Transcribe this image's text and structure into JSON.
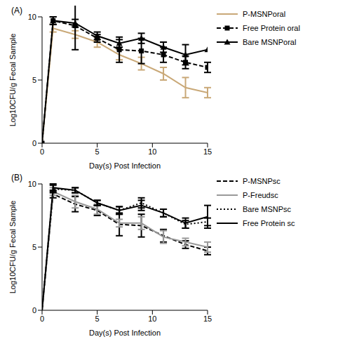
{
  "chart_data": [
    {
      "type": "line",
      "title": "(A)",
      "x_label": "Day(s) Post Infection",
      "y_label": "Log10CFU/g Fecal Sample",
      "x": [
        0,
        1,
        3,
        5,
        7,
        9,
        11,
        13,
        15
      ],
      "xlim": [
        0,
        15
      ],
      "xticks": [
        0,
        5,
        10,
        15
      ],
      "ylim": [
        0,
        10
      ],
      "yticks": [
        0,
        5,
        10
      ],
      "grid": false,
      "legend": "right",
      "series": [
        {
          "name": "P-MSNPoral",
          "color": "#c9a877",
          "line_style": "solid",
          "marker": "none",
          "values": [
            0,
            9.1,
            8.6,
            8.0,
            7.0,
            6.3,
            5.5,
            4.4,
            4.0
          ],
          "errors": [
            0,
            0.3,
            0.3,
            0.4,
            0.4,
            0.5,
            0.5,
            0.8,
            0.4
          ]
        },
        {
          "name": "Free Protein oral",
          "color": "#000000",
          "line_style": "dashed",
          "marker": "square",
          "values": [
            0,
            9.7,
            9.3,
            8.3,
            7.4,
            7.3,
            7.0,
            6.4,
            6.0
          ],
          "errors": [
            0,
            0.3,
            1.9,
            0.3,
            1.0,
            1.0,
            0.6,
            0.5,
            0.4
          ]
        },
        {
          "name": "Bare MSNPoral",
          "color": "#000000",
          "line_style": "solid",
          "marker": "triangle",
          "values": [
            0,
            9.7,
            9.5,
            8.5,
            7.9,
            8.3,
            7.6,
            7.0,
            7.4
          ],
          "errors": [
            0,
            0.3,
            0.3,
            0.3,
            0.3,
            0.4,
            0.4,
            0.8,
            0
          ]
        }
      ]
    },
    {
      "type": "line",
      "title": "(B)",
      "x_label": "Day(s) Post Infection",
      "y_label": "Log10CFU/g Fecal Sample",
      "x": [
        0,
        1,
        3,
        5,
        7,
        9,
        11,
        13,
        15
      ],
      "xlim": [
        0,
        15
      ],
      "xticks": [
        0,
        5,
        10,
        15
      ],
      "ylim": [
        0,
        10
      ],
      "yticks": [
        0,
        5,
        10
      ],
      "grid": false,
      "legend": "right",
      "series": [
        {
          "name": "P-MSNPsc",
          "color": "#000000",
          "line_style": "dashed",
          "marker": "none",
          "values": [
            0,
            9.2,
            8.4,
            7.9,
            6.8,
            6.7,
            5.9,
            5.2,
            4.7
          ],
          "errors": [
            0,
            0.3,
            0.6,
            0.4,
            0.9,
            0.9,
            0.5,
            0.3,
            0.3
          ]
        },
        {
          "name": "P-Freudsc",
          "color": "#999999",
          "line_style": "solid",
          "marker": "none",
          "values": [
            0,
            9.4,
            8.6,
            8.0,
            6.9,
            6.9,
            5.8,
            5.4,
            5.0
          ],
          "errors": [
            0,
            0.3,
            0.5,
            0.4,
            0.3,
            0.5,
            0.5,
            0.3,
            0.4
          ]
        },
        {
          "name": "Bare MSNPsc",
          "color": "#000000",
          "line_style": "dotted",
          "marker": "none",
          "values": [
            0,
            9.6,
            9.5,
            8.5,
            7.9,
            8.5,
            7.7,
            6.8,
            7.0
          ],
          "errors": [
            0,
            0.3,
            0.2,
            0.2,
            0.3,
            0.4,
            0.3,
            0.3,
            0.3
          ]
        },
        {
          "name": "Free Protein sc",
          "color": "#000000",
          "line_style": "solid",
          "marker": "none",
          "values": [
            0,
            9.7,
            9.5,
            8.5,
            7.9,
            8.3,
            7.7,
            6.9,
            7.4
          ],
          "errors": [
            0,
            0.3,
            0.2,
            0.2,
            0.3,
            0.4,
            0.3,
            0.4,
            0.9
          ]
        }
      ]
    }
  ]
}
